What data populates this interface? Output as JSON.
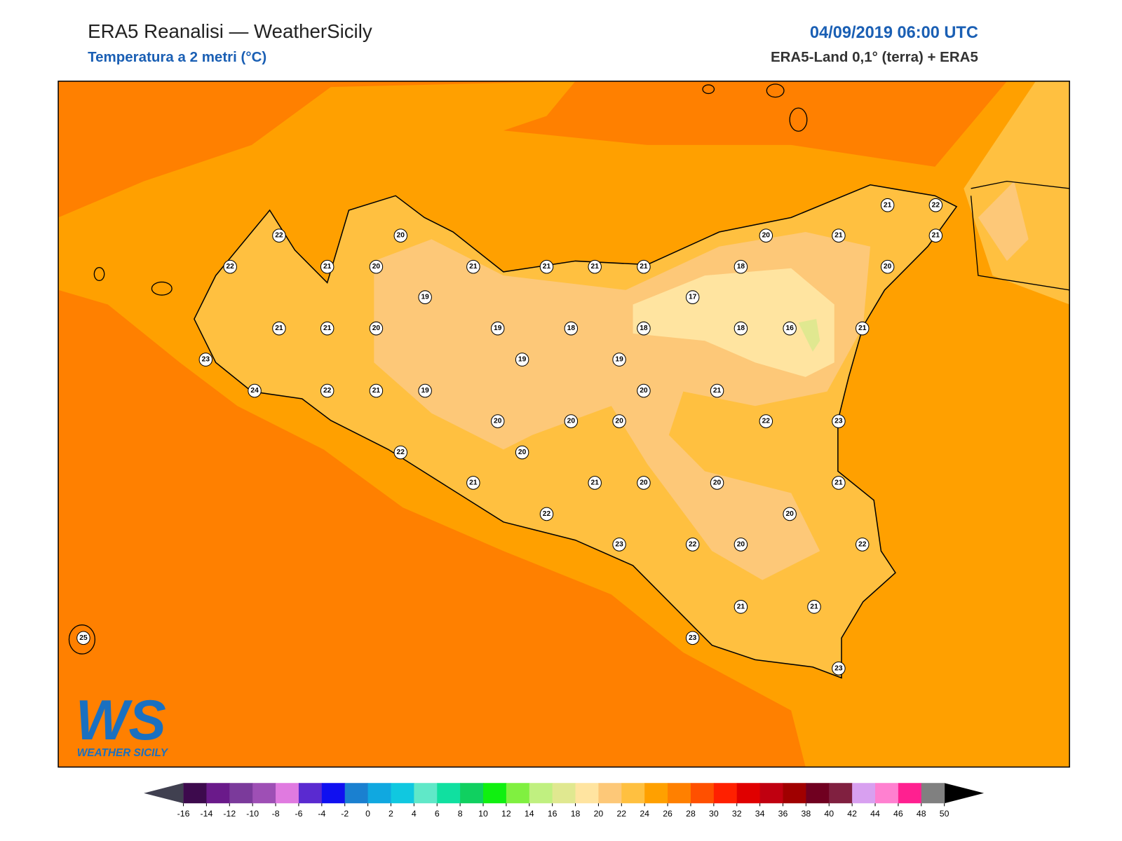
{
  "header": {
    "title": "ERA5 Reanalisi — WeatherSicily",
    "subtitle": "Temperatura a 2 metri (°C)",
    "datetime": "04/09/2019 06:00 UTC",
    "source": "ERA5-Land 0,1° (terra) + ERA5"
  },
  "stations": [
    22,
    20,
    22,
    21,
    20,
    21,
    21,
    21,
    21,
    20,
    21,
    21,
    22,
    21,
    18,
    20,
    19,
    17,
    21,
    21,
    20,
    19,
    18,
    18,
    18,
    16,
    21,
    23,
    19,
    19,
    24,
    22,
    21,
    19,
    20,
    21,
    20,
    20,
    20,
    22,
    23,
    22,
    20,
    21,
    21,
    20,
    20,
    21,
    20,
    22,
    23,
    22,
    20,
    22,
    21,
    21,
    23,
    23,
    25
  ],
  "colorbar": {
    "ticks": [
      -16,
      -14,
      -12,
      -10,
      -8,
      -6,
      -4,
      -2,
      0,
      2,
      4,
      6,
      8,
      10,
      12,
      14,
      16,
      18,
      20,
      22,
      24,
      26,
      28,
      30,
      32,
      34,
      36,
      38,
      40,
      42,
      44,
      46,
      48,
      50
    ],
    "colors": [
      "#3d0a4d",
      "#6a1a8a",
      "#7b3a9b",
      "#9e4fb5",
      "#e07ae0",
      "#5a2ad0",
      "#1010f0",
      "#1a80d0",
      "#10a8e0",
      "#10c8e0",
      "#60e8c8",
      "#10e0a0",
      "#10d060",
      "#10f010",
      "#80f040",
      "#c0f080",
      "#e0e890",
      "#ffe4a0",
      "#fdc878",
      "#ffc040",
      "#ffa000",
      "#ff8000",
      "#ff5000",
      "#ff2000",
      "#e00000",
      "#c00010",
      "#a00000",
      "#700020",
      "#802040",
      "#d8a0f0",
      "#ff80d0",
      "#ff2090",
      "#808080"
    ],
    "under_color": "#404050",
    "over_color": "#000000"
  },
  "logo": {
    "initials": "WS",
    "name": "WEATHER SICILY"
  }
}
